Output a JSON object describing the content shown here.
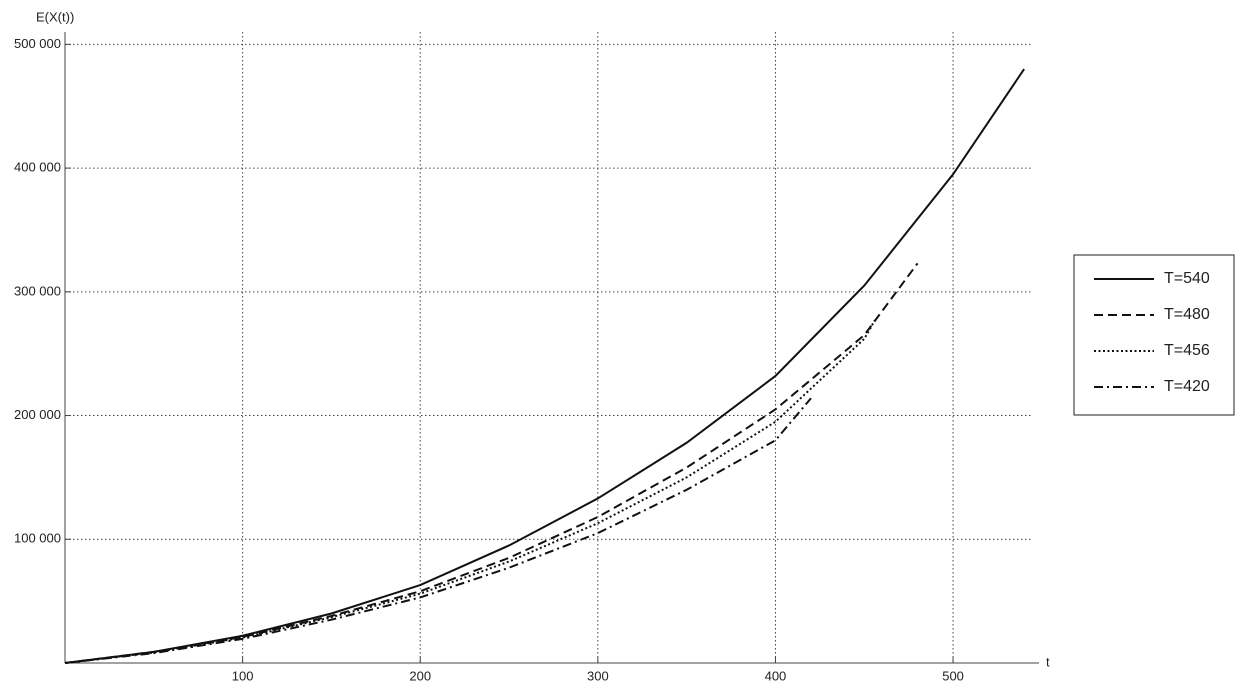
{
  "chart_data": {
    "type": "line",
    "y_label": "E(X(t))",
    "x_label": "t",
    "xlim": [
      0,
      545
    ],
    "ylim": [
      0,
      510000
    ],
    "xticks": [
      100,
      200,
      300,
      400,
      500
    ],
    "yticks": [
      {
        "value": 100000,
        "label": "100 000"
      },
      {
        "value": 200000,
        "label": "200 000"
      },
      {
        "value": 300000,
        "label": "300 000"
      },
      {
        "value": 400000,
        "label": "400 000"
      },
      {
        "value": 500000,
        "label": "500 000"
      }
    ],
    "grid": true,
    "legend": "right",
    "series": [
      {
        "name": "T=540",
        "color": "#111111",
        "dash": "solid",
        "x": [
          0,
          50,
          100,
          150,
          200,
          250,
          300,
          350,
          400,
          450,
          500,
          540
        ],
        "values": [
          0,
          9000,
          22000,
          40000,
          63000,
          95000,
          133000,
          178000,
          232000,
          305000,
          395000,
          480000
        ]
      },
      {
        "name": "T=480",
        "color": "#111111",
        "dash": "dashed",
        "x": [
          0,
          50,
          100,
          150,
          200,
          250,
          300,
          350,
          400,
          450,
          480
        ],
        "values": [
          0,
          9000,
          21000,
          38000,
          58000,
          85000,
          118000,
          158000,
          205000,
          265000,
          323000
        ]
      },
      {
        "name": "T=456",
        "color": "#111111",
        "dash": "dotted",
        "x": [
          0,
          50,
          100,
          150,
          200,
          250,
          300,
          350,
          400,
          450,
          456
        ],
        "values": [
          0,
          8500,
          20500,
          37000,
          56000,
          82000,
          113000,
          150000,
          195000,
          262000,
          277000
        ]
      },
      {
        "name": "T=420",
        "color": "#111111",
        "dash": "dashdot",
        "x": [
          0,
          50,
          100,
          150,
          200,
          250,
          300,
          350,
          400,
          420
        ],
        "values": [
          0,
          8000,
          19500,
          35000,
          53000,
          77000,
          105000,
          140000,
          180000,
          214000
        ]
      }
    ]
  }
}
